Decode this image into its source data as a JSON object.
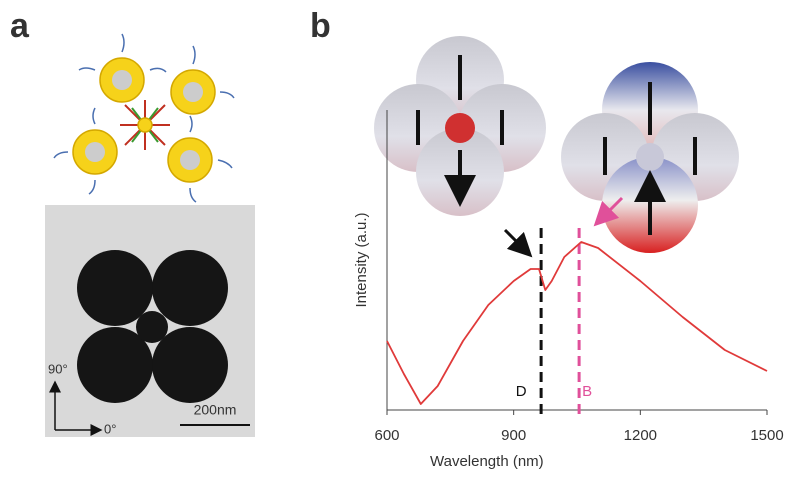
{
  "panel_labels": [
    "a",
    "b"
  ],
  "panel_a": {
    "angle_labels": [
      "90°",
      "0°"
    ],
    "scale_bar": "200nm"
  },
  "chart_data": {
    "type": "line",
    "x_label": "Wavelength (nm)",
    "y_label": "Intensity (a.u.)",
    "x": [
      600,
      640,
      680,
      720,
      780,
      840,
      900,
      940,
      960,
      975,
      990,
      1020,
      1060,
      1100,
      1200,
      1300,
      1400,
      1500
    ],
    "series": [
      {
        "color": "#e03a3a",
        "values": [
          0.23,
          0.12,
          0.02,
          0.08,
          0.23,
          0.35,
          0.43,
          0.47,
          0.47,
          0.4,
          0.43,
          0.51,
          0.56,
          0.54,
          0.43,
          0.31,
          0.2,
          0.13
        ]
      }
    ],
    "xlim": [
      600,
      1500
    ],
    "xticks": [
      600,
      900,
      1200,
      1500
    ],
    "ylim": [
      0,
      1
    ],
    "markers": [
      {
        "x": 965,
        "label": "D",
        "color": "#111111"
      },
      {
        "x": 1055,
        "label": "B",
        "color": "#e0509a"
      }
    ]
  }
}
